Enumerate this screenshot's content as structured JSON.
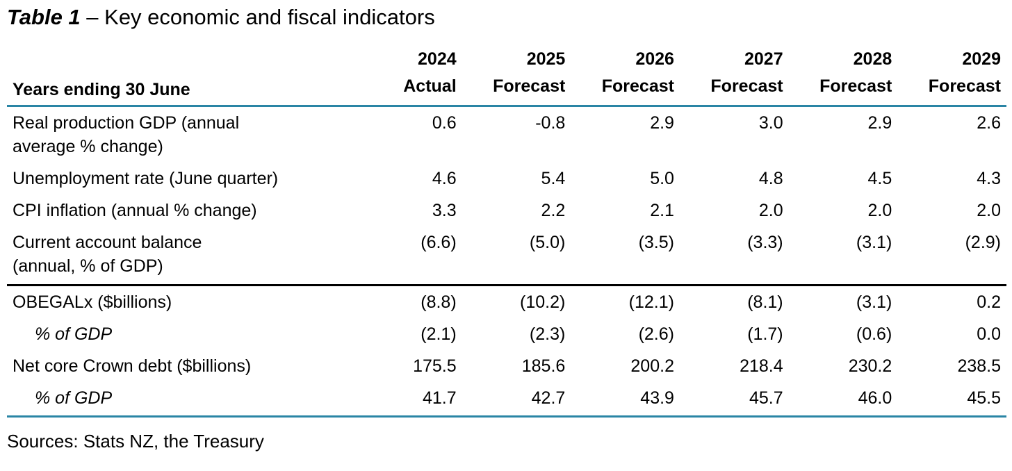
{
  "title": {
    "label": "Table 1",
    "rest": " – Key economic and fiscal indicators"
  },
  "header": {
    "stub": "Years ending 30 June",
    "columns": [
      {
        "year": "2024",
        "kind": "Actual"
      },
      {
        "year": "2025",
        "kind": "Forecast"
      },
      {
        "year": "2026",
        "kind": "Forecast"
      },
      {
        "year": "2027",
        "kind": "Forecast"
      },
      {
        "year": "2028",
        "kind": "Forecast"
      },
      {
        "year": "2029",
        "kind": "Forecast"
      }
    ]
  },
  "rows": [
    {
      "label_lines": [
        "Real production GDP (annual",
        "average % change)"
      ],
      "values": [
        "0.6",
        "-0.8",
        "2.9",
        "3.0",
        "2.9",
        "2.6"
      ]
    },
    {
      "label_lines": [
        "Unemployment rate (June quarter)"
      ],
      "values": [
        "4.6",
        "5.4",
        "5.0",
        "4.8",
        "4.5",
        "4.3"
      ]
    },
    {
      "label_lines": [
        "CPI inflation (annual % change)"
      ],
      "values": [
        "3.3",
        "2.2",
        "2.1",
        "2.0",
        "2.0",
        "2.0"
      ]
    },
    {
      "label_lines": [
        "Current account balance",
        "(annual, % of GDP)"
      ],
      "values": [
        "(6.6)",
        "(5.0)",
        "(3.5)",
        "(3.3)",
        "(3.1)",
        "(2.9)"
      ]
    },
    {
      "label_lines": [
        "OBEGALx ($billions)"
      ],
      "values": [
        "(8.8)",
        "(10.2)",
        "(12.1)",
        "(8.1)",
        "(3.1)",
        "0.2"
      ]
    },
    {
      "label_lines": [
        "% of GDP"
      ],
      "values": [
        "(2.1)",
        "(2.3)",
        "(2.6)",
        "(1.7)",
        "(0.6)",
        "0.0"
      ]
    },
    {
      "label_lines": [
        "Net core Crown debt ($billions)"
      ],
      "values": [
        "175.5",
        "185.6",
        "200.2",
        "218.4",
        "230.2",
        "238.5"
      ]
    },
    {
      "label_lines": [
        "% of GDP"
      ],
      "values": [
        "41.7",
        "42.7",
        "43.9",
        "45.7",
        "46.0",
        "45.5"
      ]
    }
  ],
  "source": "Sources: Stats NZ, the Treasury",
  "colors": {
    "rule_blue": "#2a85a5",
    "rule_black": "#000000",
    "text": "#000000",
    "background": "#ffffff"
  }
}
